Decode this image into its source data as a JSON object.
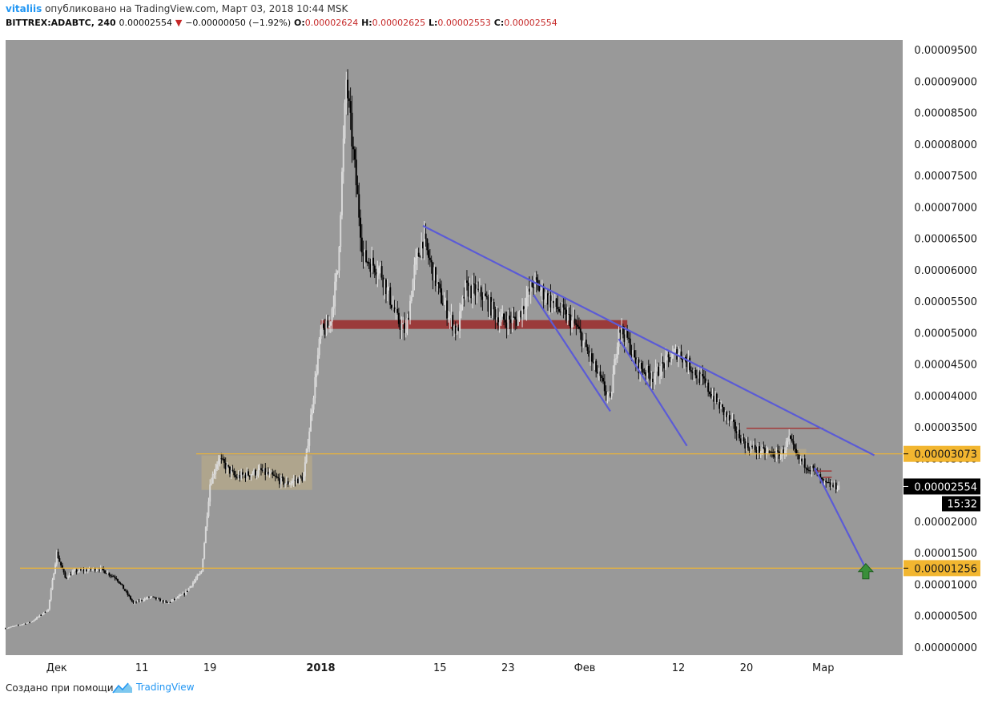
{
  "header": {
    "author": "vitaliis",
    "published_text": "опубликовано на TradingView.com, Март 03, 2018 10:44 MSK",
    "symbol": "BITTREX:ADABTC, 240",
    "last": "0.00002554",
    "change": "−0.00000050 (−1.92%)",
    "o_label": "O:",
    "o_value": "0.00002624",
    "h_label": "H:",
    "h_value": "0.00002625",
    "l_label": "L:",
    "l_value": "0.00002553",
    "c_label": "C:",
    "c_value": "0.00002554"
  },
  "footer": {
    "created_text": "Создано при помощи",
    "brand": "TradingView"
  },
  "colors": {
    "background": "#999999",
    "axis_bg": "#ffffff",
    "trendline": "#5b5bd6",
    "level_line": "#f2b630",
    "support_zone": "#9b2a2a",
    "consolidation": "#b7a98a",
    "arrow": "#3a8f3a",
    "up_candle": "#d9d9d9",
    "down_candle": "#000000"
  },
  "chart_data": {
    "type": "candlestick",
    "title": "",
    "ylim": [
      0,
      9.7e-05
    ],
    "y_ticks": [
      "0.00009500",
      "0.00009000",
      "0.00008500",
      "0.00008000",
      "0.00007500",
      "0.00007000",
      "0.00006500",
      "0.00006000",
      "0.00005500",
      "0.00005000",
      "0.00004500",
      "0.00004000",
      "0.00003500",
      "0.00003000",
      "0.00002000",
      "0.00001500",
      "0.00001000",
      "0.00000500",
      "0.00000000"
    ],
    "y_tick_values": [
      9.5e-05,
      9e-05,
      8.5e-05,
      8e-05,
      7.5e-05,
      7e-05,
      6.5e-05,
      6e-05,
      5.5e-05,
      5e-05,
      4.5e-05,
      4e-05,
      3.5e-05,
      3e-05,
      2e-05,
      1.5e-05,
      1e-05,
      5e-06,
      0
    ],
    "x_labels": [
      "Дек",
      "11",
      "19",
      "2018",
      "15",
      "23",
      "Фев",
      "12",
      "20",
      "Мар"
    ],
    "x_label_bold": [
      false,
      false,
      false,
      true,
      false,
      false,
      false,
      false,
      false,
      false
    ],
    "x_label_dates": [
      "2017-12-01",
      "2017-12-11",
      "2017-12-19",
      "2018-01-01",
      "2018-01-15",
      "2018-01-23",
      "2018-02-01",
      "2018-02-12",
      "2018-02-20",
      "2018-03-01"
    ],
    "date_range": [
      "2017-11-25",
      "2018-03-03"
    ],
    "price_path": [
      [
        "2017-11-25",
        3e-06
      ],
      [
        "2017-11-28",
        4e-06
      ],
      [
        "2017-11-30",
        6e-06
      ],
      [
        "2017-12-01",
        1.5e-05
      ],
      [
        "2017-12-02",
        1.1e-05
      ],
      [
        "2017-12-03",
        1.2e-05
      ],
      [
        "2017-12-06",
        1.25e-05
      ],
      [
        "2017-12-08",
        1.1e-05
      ],
      [
        "2017-12-10",
        7e-06
      ],
      [
        "2017-12-12",
        8e-06
      ],
      [
        "2017-12-14",
        7e-06
      ],
      [
        "2017-12-16",
        8.5e-06
      ],
      [
        "2017-12-18",
        1.2e-05
      ],
      [
        "2017-12-19",
        2.6e-05
      ],
      [
        "2017-12-20",
        3e-05
      ],
      [
        "2017-12-22",
        2.7e-05
      ],
      [
        "2017-12-25",
        2.8e-05
      ],
      [
        "2017-12-28",
        2.6e-05
      ],
      [
        "2017-12-30",
        2.7e-05
      ],
      [
        "2018-01-01",
        5e-05
      ],
      [
        "2018-01-02",
        5.1e-05
      ],
      [
        "2018-01-03",
        6e-05
      ],
      [
        "2018-01-04",
        9e-05
      ],
      [
        "2018-01-05",
        7.6e-05
      ],
      [
        "2018-01-06",
        6.2e-05
      ],
      [
        "2018-01-08",
        6e-05
      ],
      [
        "2018-01-10",
        5.2e-05
      ],
      [
        "2018-01-11",
        5e-05
      ],
      [
        "2018-01-12",
        6e-05
      ],
      [
        "2018-01-13",
        6.5e-05
      ],
      [
        "2018-01-15",
        5.6e-05
      ],
      [
        "2018-01-17",
        5e-05
      ],
      [
        "2018-01-18",
        5.7e-05
      ],
      [
        "2018-01-20",
        5.6e-05
      ],
      [
        "2018-01-22",
        5.2e-05
      ],
      [
        "2018-01-24",
        5.2e-05
      ],
      [
        "2018-01-26",
        5.8e-05
      ],
      [
        "2018-01-28",
        5.5e-05
      ],
      [
        "2018-01-31",
        5.1e-05
      ],
      [
        "2018-02-03",
        4.2e-05
      ],
      [
        "2018-02-04",
        3.9e-05
      ],
      [
        "2018-02-05",
        5.1e-05
      ],
      [
        "2018-02-06",
        4.9e-05
      ],
      [
        "2018-02-07",
        4.5e-05
      ],
      [
        "2018-02-09",
        4.3e-05
      ],
      [
        "2018-02-11",
        4.6e-05
      ],
      [
        "2018-02-12",
        4.7e-05
      ],
      [
        "2018-02-15",
        4.2e-05
      ],
      [
        "2018-02-18",
        3.6e-05
      ],
      [
        "2018-02-20",
        3.2e-05
      ],
      [
        "2018-02-22",
        3.1e-05
      ],
      [
        "2018-02-24",
        3.05e-05
      ],
      [
        "2018-02-25",
        3.3e-05
      ],
      [
        "2018-02-26",
        3e-05
      ],
      [
        "2018-02-28",
        2.8e-05
      ],
      [
        "2018-03-01",
        2.6e-05
      ],
      [
        "2018-03-02",
        2.56e-05
      ],
      [
        "2018-03-03",
        2.55e-05
      ]
    ],
    "trendlines": [
      {
        "from": [
          "2018-01-13",
          6.7e-05
        ],
        "to": [
          "2018-03-07",
          3.05e-05
        ]
      },
      {
        "from": [
          "2018-01-26",
          5.6e-05
        ],
        "to": [
          "2018-02-04",
          3.75e-05
        ]
      },
      {
        "from": [
          "2018-02-05",
          4.9e-05
        ],
        "to": [
          "2018-02-13",
          3.2e-05
        ]
      },
      {
        "from": [
          "2018-02-28",
          2.85e-05
        ],
        "to": [
          "2018-03-06",
          1.25e-05
        ]
      }
    ],
    "horizontal_levels": [
      {
        "value": 3.073e-05,
        "label": "0.00003073"
      },
      {
        "value": 1.256e-05,
        "label": "0.00001256"
      }
    ],
    "zones": [
      {
        "kind": "support",
        "x0": "2018-01-01",
        "x1": "2018-02-06",
        "y0": 5.06e-05,
        "y1": 5.2e-05
      },
      {
        "kind": "consolidation",
        "x0": "2017-12-18",
        "x1": "2017-12-31",
        "y0": 2.5e-05,
        "y1": 3.05e-05
      },
      {
        "kind": "consolidation",
        "x0": "2018-02-20",
        "x1": "2018-02-27",
        "y0": 3.05e-05,
        "y1": 3.15e-05
      }
    ],
    "resistance_marks": [
      {
        "x0": "2018-02-20",
        "x1": "2018-03-01",
        "value": 3.48e-05
      },
      {
        "x0": "2018-02-28",
        "x1": "2018-03-02",
        "value": 2.8e-05
      },
      {
        "x0": "2018-03-01",
        "x1": "2018-03-02",
        "value": 2.7e-05
      }
    ],
    "target_arrow": {
      "date": "2018-03-06",
      "value": 1.2e-05,
      "direction": "up"
    },
    "last_price": {
      "label": "0.00002554",
      "countdown": "15:32",
      "value": 2.554e-05
    }
  }
}
